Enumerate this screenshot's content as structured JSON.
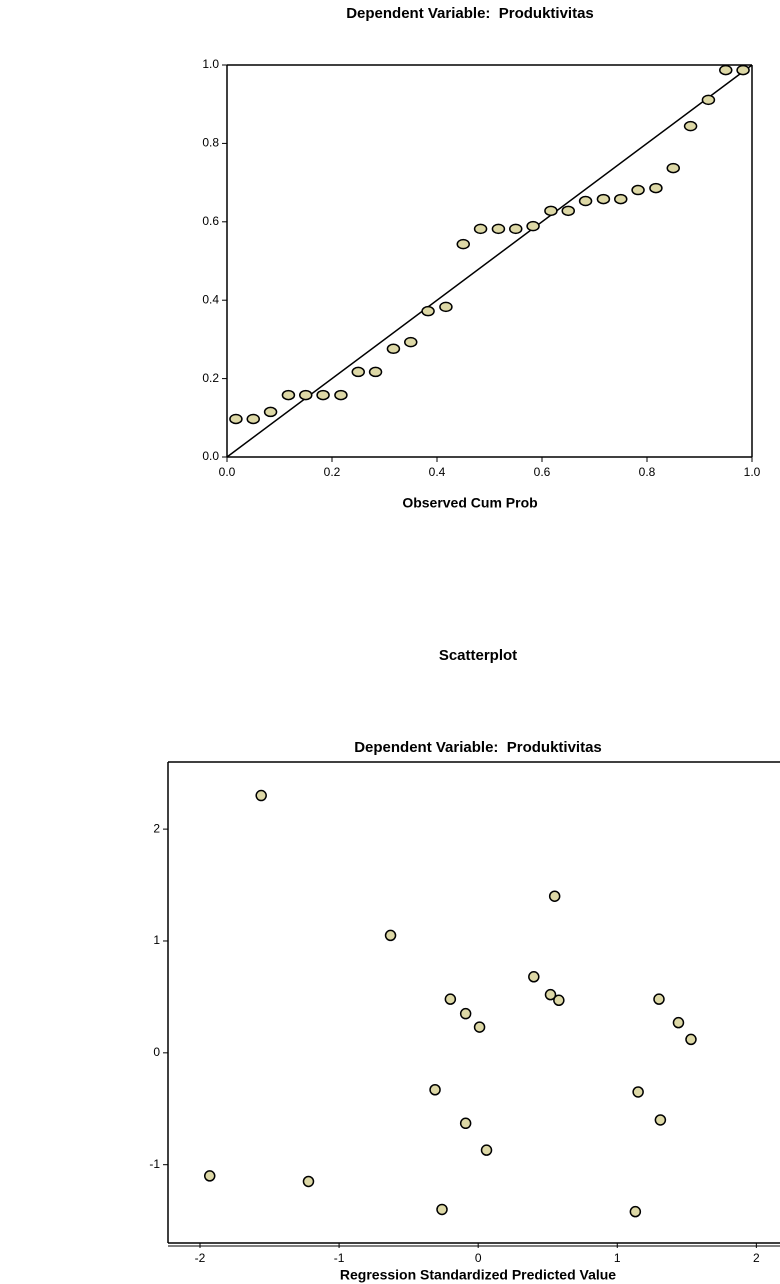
{
  "chart_data": [
    {
      "type": "scatter",
      "title": "Dependent Variable:  Produktivitas",
      "x_label": "Observed Cum Prob",
      "color": "#ddd8a6",
      "xlim": [
        0,
        1
      ],
      "ylim": [
        0,
        1
      ],
      "xticks": [
        {
          "value": 0,
          "label": "0.0"
        },
        {
          "value": 0.2,
          "label": "0.2"
        },
        {
          "value": 0.4,
          "label": "0.4"
        },
        {
          "value": 0.6,
          "label": "0.6"
        },
        {
          "value": 0.8,
          "label": "0.8"
        },
        {
          "value": 1,
          "label": "1.0"
        }
      ],
      "yticks": [
        {
          "value": 0,
          "label": "0.0"
        },
        {
          "value": 0.2,
          "label": "0.2"
        },
        {
          "value": 0.4,
          "label": "0.4"
        },
        {
          "value": 0.6,
          "label": "0.6"
        },
        {
          "value": 0.8,
          "label": "0.8"
        },
        {
          "value": 1,
          "label": "1.0"
        }
      ],
      "reference_line": true,
      "x": [
        0.017,
        0.05,
        0.083,
        0.117,
        0.15,
        0.183,
        0.217,
        0.25,
        0.283,
        0.317,
        0.35,
        0.383,
        0.417,
        0.45,
        0.483,
        0.517,
        0.55,
        0.583,
        0.617,
        0.65,
        0.683,
        0.717,
        0.75,
        0.783,
        0.817,
        0.85,
        0.883,
        0.917,
        0.95,
        0.983
      ],
      "values": [
        0.097,
        0.097,
        0.115,
        0.158,
        0.158,
        0.158,
        0.158,
        0.217,
        0.217,
        0.276,
        0.293,
        0.372,
        0.383,
        0.543,
        0.582,
        0.582,
        0.582,
        0.589,
        0.628,
        0.628,
        0.653,
        0.658,
        0.658,
        0.681,
        0.686,
        0.737,
        0.844,
        0.911,
        0.987,
        0.987
      ]
    },
    {
      "type": "scatter",
      "title": "Scatterplot",
      "subtitle": "Dependent Variable:  Produktivitas",
      "x_label": "Regression Standardized Predicted Value",
      "color": "#ddd8a6",
      "xlim": [
        -2.23,
        2.17
      ],
      "ylim": [
        -1.7,
        2.6
      ],
      "xticks": [
        -2,
        -1,
        0,
        1,
        2
      ],
      "yticks": [
        -1,
        0,
        1,
        2
      ],
      "reference_line": false,
      "x": [
        -1.56,
        0.55,
        -0.63,
        0.4,
        0.52,
        0.58,
        -0.2,
        -0.09,
        0.01,
        1.3,
        1.44,
        1.53,
        -0.31,
        -0.09,
        0.06,
        1.15,
        1.31,
        -1.93,
        -1.22,
        -0.26,
        1.13
      ],
      "values": [
        2.3,
        1.4,
        1.05,
        0.68,
        0.52,
        0.47,
        0.48,
        0.35,
        0.23,
        0.48,
        0.27,
        0.12,
        -0.33,
        -0.63,
        -0.87,
        -0.35,
        -0.6,
        -1.1,
        -1.15,
        -1.4,
        -1.42
      ]
    }
  ]
}
